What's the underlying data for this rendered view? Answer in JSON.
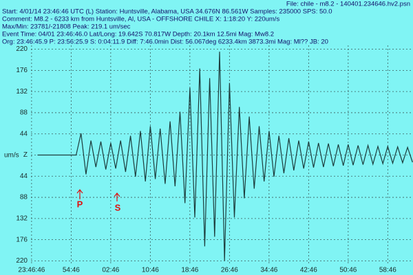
{
  "chart_data": {
    "type": "line",
    "file": "File: chile - m8.2 - 140401.234646.hv2.psn",
    "header": [
      "Start: 4/01/14 23:46:46 UTC (L) Station: Huntsville, Alabama, USA 34.676N 86.561W Samples: 235000  SPS: 50.0",
      "Comment: M8.2 - 6233 km from Huntsville, Al, USA - OFFSHORE CHILE  X: 1:18:20 Y: 220um/s",
      "Max/Min: 23781/-21808  Peak: 219.1 um/sec",
      "Event Time: 04/01 23:46:46.0 Lat/Long: 19.642S 70.817W Depth: 20.1km 12.5mi Mag: Mw8.2",
      "Org: 23:46:45.9 P: 23:56:25.9 S: 0:04:11.9 Diff: 7:46.0min Dist: 56.067deg 6233.4km 3873.3mi  Mag: Ml?? JB: 20"
    ],
    "y_label": "um/s",
    "annotations": [
      "P",
      "S"
    ],
    "color": "#1c3c3c",
    "grid": true,
    "xlim": [
      -3.6,
      77.1
    ],
    "ylim": [
      -228,
      228
    ],
    "xticks": [
      {
        "value": 0,
        "label": "23:46:46"
      },
      {
        "value": 8,
        "label": "54:46"
      },
      {
        "value": 16,
        "label": "02:46"
      },
      {
        "value": 24,
        "label": "10:46"
      },
      {
        "value": 32,
        "label": "18:46"
      },
      {
        "value": 40,
        "label": "26:46"
      },
      {
        "value": 48,
        "label": "34:46"
      },
      {
        "value": 56,
        "label": "42:46"
      },
      {
        "value": 64,
        "label": "50:46"
      },
      {
        "value": 72,
        "label": "58:46"
      }
    ],
    "yticks": [
      220,
      176,
      132,
      88,
      44,
      {
        "value": 0,
        "label": "Z"
      },
      {
        "value": -44,
        "label": "44"
      },
      {
        "value": -88,
        "label": "88"
      },
      {
        "value": -132,
        "label": "132"
      },
      {
        "value": -176,
        "label": "176"
      },
      {
        "value": -220,
        "label": "220"
      }
    ],
    "x": [
      1.2,
      2,
      3,
      4,
      5,
      6,
      7,
      8,
      9,
      10,
      11,
      12,
      13,
      14,
      15,
      16,
      17,
      18,
      19,
      20,
      21,
      22,
      23,
      24,
      25,
      26,
      27,
      28,
      29,
      30,
      31,
      32,
      33,
      34,
      35,
      36,
      37,
      38,
      39,
      40,
      41,
      42,
      43,
      44,
      45,
      46,
      47,
      48,
      49,
      50,
      51,
      52,
      53,
      54,
      55,
      56,
      57,
      58,
      59,
      60,
      61,
      62,
      63,
      64,
      65,
      66,
      67,
      68,
      69,
      70,
      71,
      72,
      73,
      74,
      75,
      76,
      77
    ],
    "values": [
      0,
      0,
      0,
      0,
      0,
      0,
      0,
      0,
      0,
      45,
      -40,
      30,
      -25,
      28,
      -30,
      25,
      -28,
      30,
      -35,
      40,
      -45,
      50,
      -55,
      60,
      -50,
      55,
      -60,
      70,
      -65,
      90,
      -100,
      140,
      -130,
      180,
      -190,
      160,
      -170,
      215,
      -220,
      150,
      -130,
      100,
      -90,
      80,
      -70,
      60,
      -55,
      50,
      -45,
      40,
      -38,
      35,
      -32,
      30,
      -28,
      28,
      -26,
      25,
      -25,
      24,
      -23,
      22,
      -22,
      22,
      -21,
      20,
      -20,
      20,
      -19,
      18,
      -18,
      18,
      -17,
      17,
      -16,
      16,
      -15
    ]
  }
}
